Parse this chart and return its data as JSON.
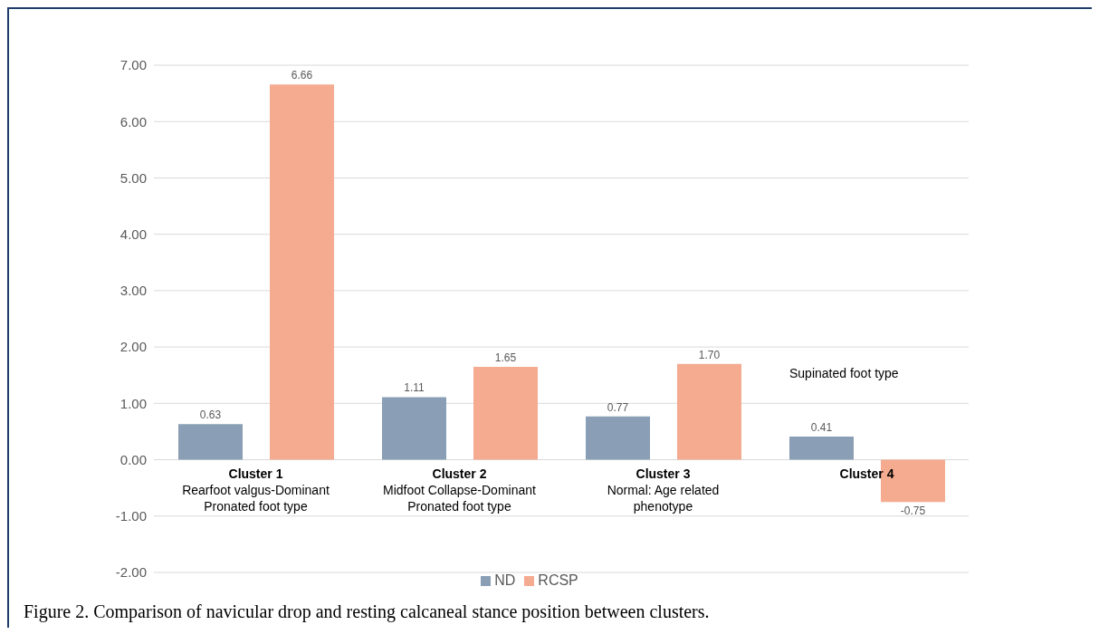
{
  "chart_data": {
    "type": "bar",
    "title": "Figure 2. Comparison of navicular drop and resting calcaneal stance position between clusters.",
    "categories": [
      "Cluster 1\nRearfoot valgus-Dominant\nPronated foot type",
      "Cluster 2\nMidfoot Collapse-Dominant\nPronated foot type",
      "Cluster 3\nNormal: Age related\nphenotype",
      "Cluster 4"
    ],
    "series": [
      {
        "name": "ND",
        "color": "#8a9fb5",
        "values": [
          0.63,
          1.11,
          0.77,
          0.41
        ],
        "value_labels": [
          "0.63",
          "1.11",
          "0.77",
          "0.41"
        ]
      },
      {
        "name": "RCSP",
        "color": "#f4ab90",
        "values": [
          6.66,
          1.65,
          1.7,
          -0.75
        ],
        "value_labels": [
          "6.66",
          "1.65",
          "1.70",
          "-0.75"
        ]
      }
    ],
    "ylim": [
      -2,
      7
    ],
    "yticks": [
      {
        "value": -2,
        "label": "-2.00"
      },
      {
        "value": -1,
        "label": "-1.00"
      },
      {
        "value": 0,
        "label": "0.00"
      },
      {
        "value": 1,
        "label": "1.00"
      },
      {
        "value": 2,
        "label": "2.00"
      },
      {
        "value": 3,
        "label": "3.00"
      },
      {
        "value": 4,
        "label": "4.00"
      },
      {
        "value": 5,
        "label": "5.00"
      },
      {
        "value": 6,
        "label": "6.00"
      },
      {
        "value": 7,
        "label": "7.00"
      }
    ],
    "grid": "y",
    "legend": "bottom",
    "annotations": [
      "Supinated foot type"
    ]
  }
}
